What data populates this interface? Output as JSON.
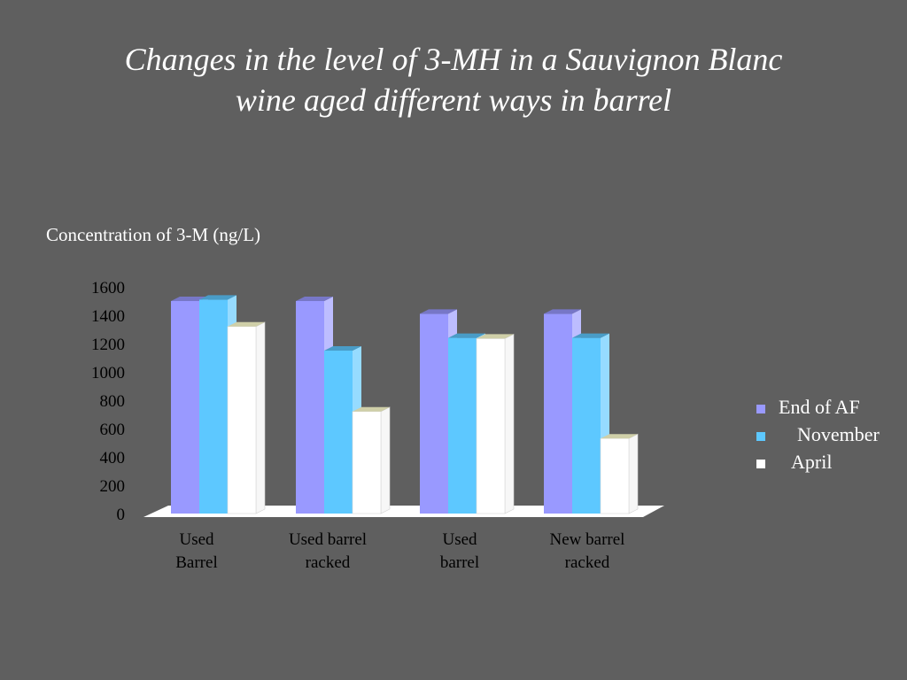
{
  "slide": {
    "title_line1": "Changes in the level of 3-MH in a Sauvignon Blanc",
    "title_line2": "wine aged different ways in barrel"
  },
  "chart_data": {
    "type": "bar",
    "title": "Changes in the level of 3-MH in a Sauvignon Blanc wine aged different ways in barrel",
    "ylabel": "Concentration of 3-M (ng/L)",
    "xlabel": "",
    "ylim": [
      0,
      1600
    ],
    "yticks": [
      0,
      200,
      400,
      600,
      800,
      1000,
      1200,
      1400,
      1600
    ],
    "categories": [
      [
        "Used",
        "Barrel"
      ],
      [
        "Used barrel",
        "racked"
      ],
      [
        "Used",
        "barrel"
      ],
      [
        "New barrel",
        "racked"
      ]
    ],
    "series": [
      {
        "name": "End of AF",
        "color": "#9999ff",
        "values": [
          1500,
          1500,
          1410,
          1410
        ]
      },
      {
        "name": "November",
        "color": "#5dc8ff",
        "values": [
          1510,
          1150,
          1240,
          1240
        ]
      },
      {
        "name": "April",
        "color": "#ffffff",
        "values": [
          1320,
          720,
          1235,
          530
        ]
      }
    ],
    "legend_position": "right",
    "grid": false,
    "style": "3d-clustered-bar"
  }
}
